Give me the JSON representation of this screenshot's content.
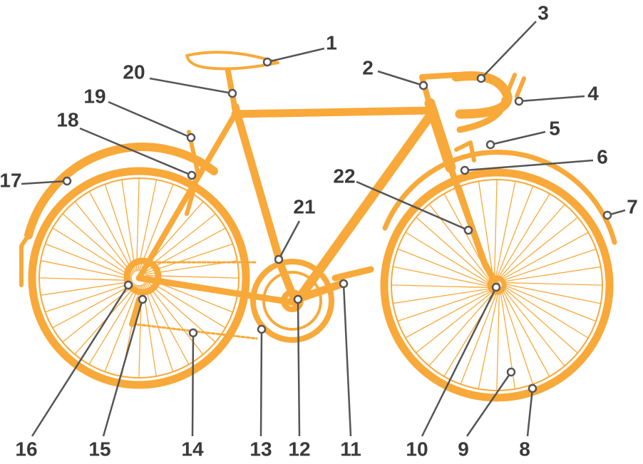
{
  "callouts": [
    "1",
    "2",
    "3",
    "4",
    "5",
    "6",
    "7",
    "8",
    "9",
    "10",
    "11",
    "12",
    "13",
    "14",
    "15",
    "16",
    "17",
    "18",
    "19",
    "20",
    "21",
    "22"
  ]
}
